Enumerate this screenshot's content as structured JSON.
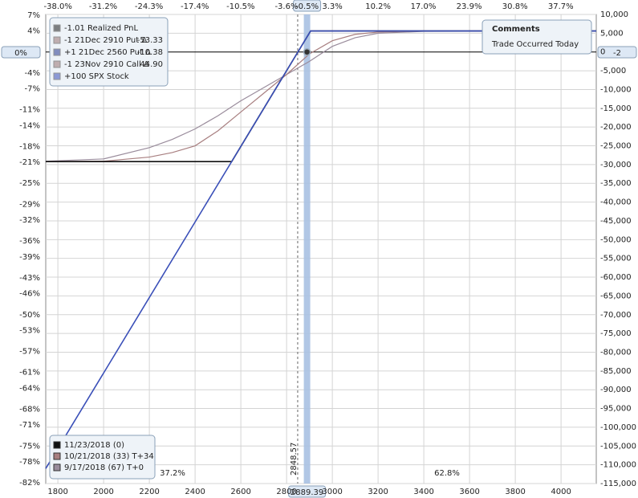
{
  "chart_data": {
    "type": "line",
    "xlim": [
      1747,
      4154
    ],
    "xticks": [
      1800,
      2000,
      2200,
      2400,
      2600,
      2800,
      3000,
      3200,
      3400,
      3600,
      3800,
      4000
    ],
    "ylim": [
      -115000,
      10000
    ],
    "yticks": [
      {
        "value": 10000,
        "label": "10,000"
      },
      {
        "value": 5000,
        "label": "5,000"
      },
      0,
      {
        "value": -5000,
        "label": "-5,000"
      },
      {
        "value": -10000,
        "label": "-10,000"
      },
      {
        "value": -15000,
        "label": "-15,000"
      },
      {
        "value": -20000,
        "label": "-20,000"
      },
      {
        "value": -25000,
        "label": "-25,000"
      },
      {
        "value": -30000,
        "label": "-30,000"
      },
      {
        "value": -35000,
        "label": "-35,000"
      },
      {
        "value": -40000,
        "label": "-40,000"
      },
      {
        "value": -45000,
        "label": "-45,000"
      },
      {
        "value": -50000,
        "label": "-50,000"
      },
      {
        "value": -55000,
        "label": "-55,000"
      },
      {
        "value": -60000,
        "label": "-60,000"
      },
      {
        "value": -65000,
        "label": "-65,000"
      },
      {
        "value": -70000,
        "label": "-70,000"
      },
      {
        "value": -75000,
        "label": "-75,000"
      },
      {
        "value": -80000,
        "label": "-80,000"
      },
      {
        "value": -85000,
        "label": "-85,000"
      },
      {
        "value": -90000,
        "label": "-90,000"
      },
      {
        "value": -95000,
        "label": "-95,000"
      },
      {
        "value": -100000,
        "label": "-100,000"
      },
      {
        "value": -105000,
        "label": "-105,000"
      },
      {
        "value": -110000,
        "label": "-110,000"
      },
      {
        "value": -115000,
        "label": "-115,000"
      }
    ],
    "y2lim": [
      -82.14,
      7.14
    ],
    "y2ticks": [
      {
        "value": 7,
        "label": "7%"
      },
      {
        "value": 4,
        "label": "4%"
      },
      {
        "value": -4,
        "label": "-4%"
      },
      {
        "value": -7,
        "label": "-7%"
      },
      {
        "value": -11,
        "label": "-11%"
      },
      {
        "value": -14,
        "label": "-14%"
      },
      {
        "value": -18,
        "label": "-18%"
      },
      {
        "value": -21,
        "label": "-21%"
      },
      {
        "value": -25,
        "label": "-25%"
      },
      {
        "value": -29,
        "label": "-29%"
      },
      {
        "value": -32,
        "label": "-32%"
      },
      {
        "value": -36,
        "label": "-36%"
      },
      {
        "value": -39,
        "label": "-39%"
      },
      {
        "value": -43,
        "label": "-43%"
      },
      {
        "value": -46,
        "label": "-46%"
      },
      {
        "value": -50,
        "label": "-50%"
      },
      {
        "value": -53,
        "label": "-53%"
      },
      {
        "value": -57,
        "label": "-57%"
      },
      {
        "value": -61,
        "label": "-61%"
      },
      {
        "value": -64,
        "label": "-64%"
      },
      {
        "value": -68,
        "label": "-68%"
      },
      {
        "value": -71,
        "label": "-71%"
      },
      {
        "value": -75,
        "label": "-75%"
      },
      {
        "value": -78,
        "label": "-78%"
      },
      {
        "value": -82,
        "label": "-82%"
      }
    ],
    "x2lim": [
      -39.84,
      43.04
    ],
    "x2ticks": [
      {
        "value": -38.0,
        "label": "-38.0%"
      },
      {
        "value": -31.2,
        "label": "-31.2%"
      },
      {
        "value": -24.3,
        "label": "-24.3%"
      },
      {
        "value": -17.4,
        "label": "-17.4%"
      },
      {
        "value": -10.5,
        "label": "-10.5%"
      },
      {
        "value": -3.6,
        "label": "-3.6%"
      },
      {
        "value": 3.3,
        "label": "3.3%"
      },
      {
        "value": 10.2,
        "label": "10.2%"
      },
      {
        "value": 17.0,
        "label": "17.0%"
      },
      {
        "value": 23.9,
        "label": "23.9%"
      },
      {
        "value": 30.8,
        "label": "30.8%"
      },
      {
        "value": 37.7,
        "label": "37.7%"
      }
    ],
    "grid": true,
    "series": [
      {
        "color": "#3a4fb8",
        "x": [
          1747,
          2560,
          2905,
          4154
        ],
        "values": [
          -111000,
          -29200,
          5600,
          5600
        ]
      },
      {
        "name": "11/23/2018 (0)",
        "color": "#111111",
        "x": [
          1747,
          2560,
          2905,
          4154
        ],
        "values": [
          -29200,
          -29200,
          5600,
          5600
        ]
      },
      {
        "name": "10/21/2018 (33) T+34",
        "color": "#a87f80",
        "x": [
          1747,
          2000,
          2200,
          2300,
          2400,
          2500,
          2600,
          2700,
          2800,
          2900,
          3000,
          3100,
          3200,
          3400,
          4154
        ],
        "values": [
          -29200,
          -29100,
          -28000,
          -26800,
          -25000,
          -21000,
          -16000,
          -11000,
          -6000,
          -500,
          3000,
          4700,
          5300,
          5600,
          5600
        ]
      },
      {
        "name": "9/17/2018 (67) T+0",
        "color": "#9a8c9c",
        "x": [
          1747,
          2000,
          2200,
          2300,
          2400,
          2500,
          2600,
          2700,
          2800,
          2900,
          3000,
          3100,
          3200,
          3400,
          4154
        ],
        "values": [
          -29100,
          -28500,
          -25500,
          -23300,
          -20500,
          -17000,
          -13000,
          -9500,
          -6000,
          -2500,
          1500,
          3800,
          5000,
          5500,
          5600
        ]
      }
    ],
    "spot": 2889.39,
    "spot_change": {
      "value": -0.5,
      "label": "-0.5%"
    },
    "spot_pnl": -2,
    "spot_pnl_pct": {
      "value": 0,
      "label": "0%"
    },
    "breakeven": 2848.57,
    "probabilities": [
      {
        "value": 37.2,
        "label": "37.2%"
      },
      {
        "value": 62.8,
        "label": "62.8%"
      }
    ],
    "positions": [
      {
        "text": "-1.01 Realized PnL",
        "color": "#333333"
      },
      {
        "text": "-1 21Dec 2910 Put Δ",
        "delta": -53.33,
        "color": "#a08080"
      },
      {
        "text": "+1 21Dec 2560 Put Δ",
        "delta": -10.38,
        "color": "#3a4a9a"
      },
      {
        "text": "-1 23Nov 2910 Call Δ",
        "delta": {
          "value": 44.9,
          "label": "44.90"
        },
        "color": "#a08080"
      },
      {
        "text": "+100 SPX Stock",
        "color": "#4a5fc0"
      }
    ],
    "comments": {
      "title": "Comments",
      "text": "Trade Occurred Today"
    }
  }
}
